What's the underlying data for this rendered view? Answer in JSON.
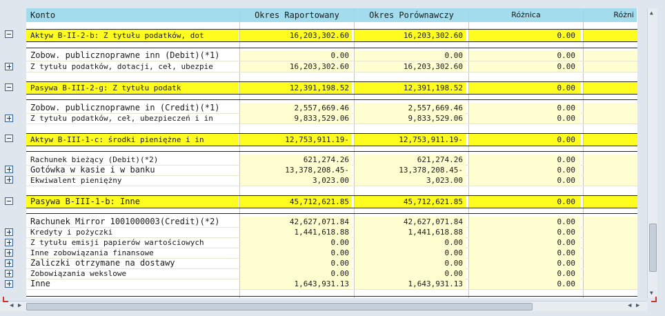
{
  "columns": {
    "konto": "Konto",
    "okres_raportowany": "Okres Raportowany",
    "okres_porownawczy": "Okres Porównawczy",
    "roznica": "Różnica",
    "roznica2": "Różni"
  },
  "rows": [
    {
      "label": "Aktyw B-II-2-b: Z tytułu podatków, dot",
      "v1": "16,203,302.60",
      "v2": "16,203,302.60",
      "v3": "0.00"
    },
    {
      "label": "Zobow. publicznoprawne inn (Debit)(*1)",
      "v1": "0.00",
      "v2": "0.00",
      "v3": "0.00"
    },
    {
      "label": "Z tytułu podatków, dotacji, ceł, ubezpie",
      "v1": "16,203,302.60",
      "v2": "16,203,302.60",
      "v3": "0.00"
    },
    {
      "label": "Pasywa B-III-2-g: Z tytułu podatk",
      "v1": "12,391,198.52",
      "v2": "12,391,198.52",
      "v3": "0.00"
    },
    {
      "label": "Zobow. publicznoprawne in (Credit)(*1)",
      "v1": "2,557,669.46",
      "v2": "2,557,669.46",
      "v3": "0.00"
    },
    {
      "label": "Z tytułu podatków, ceł, ubezpieczeń i in",
      "v1": "9,833,529.06",
      "v2": "9,833,529.06",
      "v3": "0.00"
    },
    {
      "label": "Aktyw B-III-1-c: środki pieniężne i in",
      "v1": "12,753,911.19-",
      "v2": "12,753,911.19-",
      "v3": "0.00"
    },
    {
      "label": "Rachunek bieżący (Debit)(*2)",
      "v1": "621,274.26",
      "v2": "621,274.26",
      "v3": "0.00"
    },
    {
      "label": "Gotówka w kasie i w banku",
      "v1": "13,378,208.45-",
      "v2": "13,378,208.45-",
      "v3": "0.00"
    },
    {
      "label": "Ekwiwalent pieniężny",
      "v1": "3,023.00",
      "v2": "3,023.00",
      "v3": "0.00"
    },
    {
      "label": "Pasywa B-III-1-b: Inne",
      "v1": "45,712,621.85",
      "v2": "45,712,621.85",
      "v3": "0.00"
    },
    {
      "label": "Rachunek Mirror 1001000003(Credit)(*2)",
      "v1": "42,627,071.84",
      "v2": "42,627,071.84",
      "v3": "0.00"
    },
    {
      "label": "Kredyty i pożyczki",
      "v1": "1,441,618.88",
      "v2": "1,441,618.88",
      "v3": "0.00"
    },
    {
      "label": "Z tytułu emisji papierów wartościowych",
      "v1": "0.00",
      "v2": "0.00",
      "v3": "0.00"
    },
    {
      "label": "Inne zobowiązania finansowe",
      "v1": "0.00",
      "v2": "0.00",
      "v3": "0.00"
    },
    {
      "label": "Zaliczki otrzymane na dostawy",
      "v1": "0.00",
      "v2": "0.00",
      "v3": "0.00"
    },
    {
      "label": "Zobowiązania wekslowe",
      "v1": "0.00",
      "v2": "0.00",
      "v3": "0.00"
    },
    {
      "label": "Inne",
      "v1": "1,643,931.13",
      "v2": "1,643,931.13",
      "v3": "0.00"
    }
  ],
  "icons": {
    "collapse": "collapse-node-icon",
    "expand": "expand-node-icon"
  },
  "colors": {
    "header_bg": "#a3dcec",
    "summary_bg": "#fffd20",
    "value_bg": "#fffed0"
  }
}
